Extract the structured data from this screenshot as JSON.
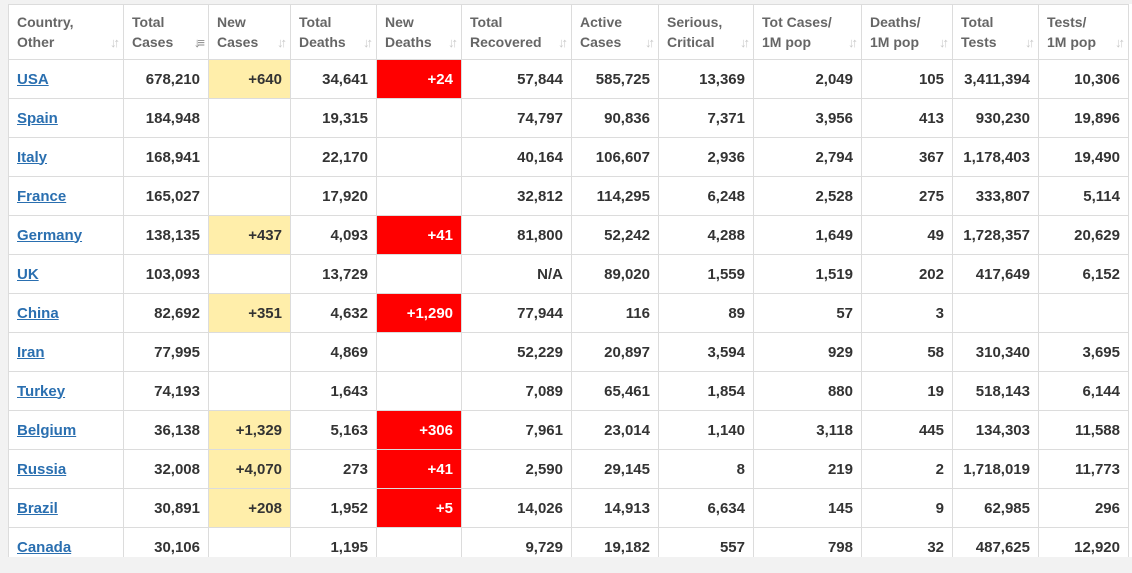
{
  "colors": {
    "new_cases_bg": "#ffeeaa",
    "new_deaths_bg": "#ff0000",
    "link": "#2a6fb0"
  },
  "headers": [
    {
      "l1": "Country,",
      "l2": "Other"
    },
    {
      "l1": "Total",
      "l2": "Cases"
    },
    {
      "l1": "New",
      "l2": "Cases"
    },
    {
      "l1": "Total",
      "l2": "Deaths"
    },
    {
      "l1": "New",
      "l2": "Deaths"
    },
    {
      "l1": "Total",
      "l2": "Recovered"
    },
    {
      "l1": "Active",
      "l2": "Cases"
    },
    {
      "l1": "Serious,",
      "l2": "Critical"
    },
    {
      "l1": "Tot Cases/",
      "l2": "1M pop"
    },
    {
      "l1": "Deaths/",
      "l2": "1M pop"
    },
    {
      "l1": "Total",
      "l2": "Tests"
    },
    {
      "l1": "Tests/",
      "l2": "1M pop"
    }
  ],
  "rows": [
    {
      "country": "USA",
      "total_cases": "678,210",
      "new_cases": "+640",
      "total_deaths": "34,641",
      "new_deaths": "+24",
      "total_recovered": "57,844",
      "active_cases": "585,725",
      "serious_critical": "13,369",
      "tot_cases_1m": "2,049",
      "deaths_1m": "105",
      "total_tests": "3,411,394",
      "tests_1m": "10,306"
    },
    {
      "country": "Spain",
      "total_cases": "184,948",
      "new_cases": "",
      "total_deaths": "19,315",
      "new_deaths": "",
      "total_recovered": "74,797",
      "active_cases": "90,836",
      "serious_critical": "7,371",
      "tot_cases_1m": "3,956",
      "deaths_1m": "413",
      "total_tests": "930,230",
      "tests_1m": "19,896"
    },
    {
      "country": "Italy",
      "total_cases": "168,941",
      "new_cases": "",
      "total_deaths": "22,170",
      "new_deaths": "",
      "total_recovered": "40,164",
      "active_cases": "106,607",
      "serious_critical": "2,936",
      "tot_cases_1m": "2,794",
      "deaths_1m": "367",
      "total_tests": "1,178,403",
      "tests_1m": "19,490"
    },
    {
      "country": "France",
      "total_cases": "165,027",
      "new_cases": "",
      "total_deaths": "17,920",
      "new_deaths": "",
      "total_recovered": "32,812",
      "active_cases": "114,295",
      "serious_critical": "6,248",
      "tot_cases_1m": "2,528",
      "deaths_1m": "275",
      "total_tests": "333,807",
      "tests_1m": "5,114"
    },
    {
      "country": "Germany",
      "total_cases": "138,135",
      "new_cases": "+437",
      "total_deaths": "4,093",
      "new_deaths": "+41",
      "total_recovered": "81,800",
      "active_cases": "52,242",
      "serious_critical": "4,288",
      "tot_cases_1m": "1,649",
      "deaths_1m": "49",
      "total_tests": "1,728,357",
      "tests_1m": "20,629"
    },
    {
      "country": "UK",
      "total_cases": "103,093",
      "new_cases": "",
      "total_deaths": "13,729",
      "new_deaths": "",
      "total_recovered": "N/A",
      "active_cases": "89,020",
      "serious_critical": "1,559",
      "tot_cases_1m": "1,519",
      "deaths_1m": "202",
      "total_tests": "417,649",
      "tests_1m": "6,152"
    },
    {
      "country": "China",
      "total_cases": "82,692",
      "new_cases": "+351",
      "total_deaths": "4,632",
      "new_deaths": "+1,290",
      "total_recovered": "77,944",
      "active_cases": "116",
      "serious_critical": "89",
      "tot_cases_1m": "57",
      "deaths_1m": "3",
      "total_tests": "",
      "tests_1m": ""
    },
    {
      "country": "Iran",
      "total_cases": "77,995",
      "new_cases": "",
      "total_deaths": "4,869",
      "new_deaths": "",
      "total_recovered": "52,229",
      "active_cases": "20,897",
      "serious_critical": "3,594",
      "tot_cases_1m": "929",
      "deaths_1m": "58",
      "total_tests": "310,340",
      "tests_1m": "3,695"
    },
    {
      "country": "Turkey",
      "total_cases": "74,193",
      "new_cases": "",
      "total_deaths": "1,643",
      "new_deaths": "",
      "total_recovered": "7,089",
      "active_cases": "65,461",
      "serious_critical": "1,854",
      "tot_cases_1m": "880",
      "deaths_1m": "19",
      "total_tests": "518,143",
      "tests_1m": "6,144"
    },
    {
      "country": "Belgium",
      "total_cases": "36,138",
      "new_cases": "+1,329",
      "total_deaths": "5,163",
      "new_deaths": "+306",
      "total_recovered": "7,961",
      "active_cases": "23,014",
      "serious_critical": "1,140",
      "tot_cases_1m": "3,118",
      "deaths_1m": "445",
      "total_tests": "134,303",
      "tests_1m": "11,588"
    },
    {
      "country": "Russia",
      "total_cases": "32,008",
      "new_cases": "+4,070",
      "total_deaths": "273",
      "new_deaths": "+41",
      "total_recovered": "2,590",
      "active_cases": "29,145",
      "serious_critical": "8",
      "tot_cases_1m": "219",
      "deaths_1m": "2",
      "total_tests": "1,718,019",
      "tests_1m": "11,773"
    },
    {
      "country": "Brazil",
      "total_cases": "30,891",
      "new_cases": "+208",
      "total_deaths": "1,952",
      "new_deaths": "+5",
      "total_recovered": "14,026",
      "active_cases": "14,913",
      "serious_critical": "6,634",
      "tot_cases_1m": "145",
      "deaths_1m": "9",
      "total_tests": "62,985",
      "tests_1m": "296"
    },
    {
      "country": "Canada",
      "total_cases": "30,106",
      "new_cases": "",
      "total_deaths": "1,195",
      "new_deaths": "",
      "total_recovered": "9,729",
      "active_cases": "19,182",
      "serious_critical": "557",
      "tot_cases_1m": "798",
      "deaths_1m": "32",
      "total_tests": "487,625",
      "tests_1m": "12,920"
    }
  ]
}
